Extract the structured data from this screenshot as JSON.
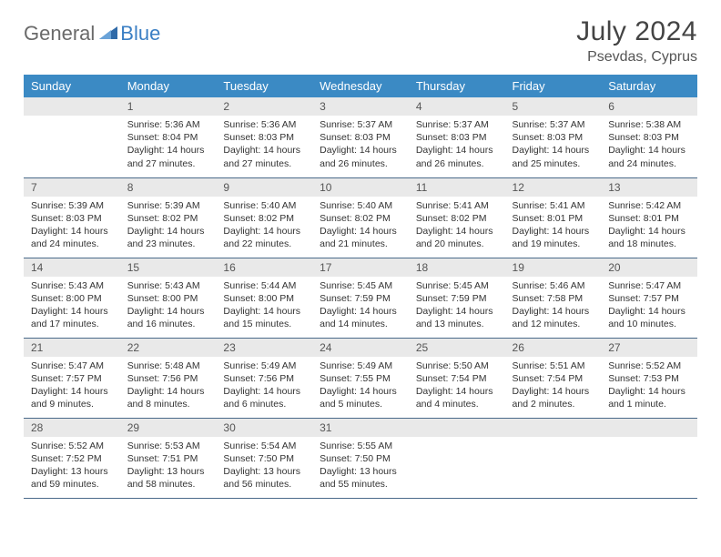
{
  "brand": {
    "part1": "General",
    "part2": "Blue"
  },
  "title": "July 2024",
  "location": "Psevdas, Cyprus",
  "colors": {
    "header_bg": "#3b8ac4",
    "header_text": "#ffffff",
    "daynum_bg": "#e9e9e9",
    "row_border": "#4a6a8a",
    "brand_grey": "#6a6a6a",
    "brand_blue": "#3b7fc4",
    "page_bg": "#ffffff",
    "body_text": "#333333"
  },
  "typography": {
    "title_fontsize": 30,
    "location_fontsize": 16,
    "weekday_fontsize": 13,
    "daynum_fontsize": 12,
    "cell_fontsize": 10.5
  },
  "weekdays": [
    "Sunday",
    "Monday",
    "Tuesday",
    "Wednesday",
    "Thursday",
    "Friday",
    "Saturday"
  ],
  "weeks": [
    [
      {
        "blank": true
      },
      {
        "n": "1",
        "sunrise": "5:36 AM",
        "sunset": "8:04 PM",
        "daylight": "14 hours and 27 minutes."
      },
      {
        "n": "2",
        "sunrise": "5:36 AM",
        "sunset": "8:03 PM",
        "daylight": "14 hours and 27 minutes."
      },
      {
        "n": "3",
        "sunrise": "5:37 AM",
        "sunset": "8:03 PM",
        "daylight": "14 hours and 26 minutes."
      },
      {
        "n": "4",
        "sunrise": "5:37 AM",
        "sunset": "8:03 PM",
        "daylight": "14 hours and 26 minutes."
      },
      {
        "n": "5",
        "sunrise": "5:37 AM",
        "sunset": "8:03 PM",
        "daylight": "14 hours and 25 minutes."
      },
      {
        "n": "6",
        "sunrise": "5:38 AM",
        "sunset": "8:03 PM",
        "daylight": "14 hours and 24 minutes."
      }
    ],
    [
      {
        "n": "7",
        "sunrise": "5:39 AM",
        "sunset": "8:03 PM",
        "daylight": "14 hours and 24 minutes."
      },
      {
        "n": "8",
        "sunrise": "5:39 AM",
        "sunset": "8:02 PM",
        "daylight": "14 hours and 23 minutes."
      },
      {
        "n": "9",
        "sunrise": "5:40 AM",
        "sunset": "8:02 PM",
        "daylight": "14 hours and 22 minutes."
      },
      {
        "n": "10",
        "sunrise": "5:40 AM",
        "sunset": "8:02 PM",
        "daylight": "14 hours and 21 minutes."
      },
      {
        "n": "11",
        "sunrise": "5:41 AM",
        "sunset": "8:02 PM",
        "daylight": "14 hours and 20 minutes."
      },
      {
        "n": "12",
        "sunrise": "5:41 AM",
        "sunset": "8:01 PM",
        "daylight": "14 hours and 19 minutes."
      },
      {
        "n": "13",
        "sunrise": "5:42 AM",
        "sunset": "8:01 PM",
        "daylight": "14 hours and 18 minutes."
      }
    ],
    [
      {
        "n": "14",
        "sunrise": "5:43 AM",
        "sunset": "8:00 PM",
        "daylight": "14 hours and 17 minutes."
      },
      {
        "n": "15",
        "sunrise": "5:43 AM",
        "sunset": "8:00 PM",
        "daylight": "14 hours and 16 minutes."
      },
      {
        "n": "16",
        "sunrise": "5:44 AM",
        "sunset": "8:00 PM",
        "daylight": "14 hours and 15 minutes."
      },
      {
        "n": "17",
        "sunrise": "5:45 AM",
        "sunset": "7:59 PM",
        "daylight": "14 hours and 14 minutes."
      },
      {
        "n": "18",
        "sunrise": "5:45 AM",
        "sunset": "7:59 PM",
        "daylight": "14 hours and 13 minutes."
      },
      {
        "n": "19",
        "sunrise": "5:46 AM",
        "sunset": "7:58 PM",
        "daylight": "14 hours and 12 minutes."
      },
      {
        "n": "20",
        "sunrise": "5:47 AM",
        "sunset": "7:57 PM",
        "daylight": "14 hours and 10 minutes."
      }
    ],
    [
      {
        "n": "21",
        "sunrise": "5:47 AM",
        "sunset": "7:57 PM",
        "daylight": "14 hours and 9 minutes."
      },
      {
        "n": "22",
        "sunrise": "5:48 AM",
        "sunset": "7:56 PM",
        "daylight": "14 hours and 8 minutes."
      },
      {
        "n": "23",
        "sunrise": "5:49 AM",
        "sunset": "7:56 PM",
        "daylight": "14 hours and 6 minutes."
      },
      {
        "n": "24",
        "sunrise": "5:49 AM",
        "sunset": "7:55 PM",
        "daylight": "14 hours and 5 minutes."
      },
      {
        "n": "25",
        "sunrise": "5:50 AM",
        "sunset": "7:54 PM",
        "daylight": "14 hours and 4 minutes."
      },
      {
        "n": "26",
        "sunrise": "5:51 AM",
        "sunset": "7:54 PM",
        "daylight": "14 hours and 2 minutes."
      },
      {
        "n": "27",
        "sunrise": "5:52 AM",
        "sunset": "7:53 PM",
        "daylight": "14 hours and 1 minute."
      }
    ],
    [
      {
        "n": "28",
        "sunrise": "5:52 AM",
        "sunset": "7:52 PM",
        "daylight": "13 hours and 59 minutes."
      },
      {
        "n": "29",
        "sunrise": "5:53 AM",
        "sunset": "7:51 PM",
        "daylight": "13 hours and 58 minutes."
      },
      {
        "n": "30",
        "sunrise": "5:54 AM",
        "sunset": "7:50 PM",
        "daylight": "13 hours and 56 minutes."
      },
      {
        "n": "31",
        "sunrise": "5:55 AM",
        "sunset": "7:50 PM",
        "daylight": "13 hours and 55 minutes."
      },
      {
        "blank": true
      },
      {
        "blank": true
      },
      {
        "blank": true
      }
    ]
  ],
  "labels": {
    "sunrise_prefix": "Sunrise: ",
    "sunset_prefix": "Sunset: ",
    "daylight_prefix": "Daylight: "
  }
}
